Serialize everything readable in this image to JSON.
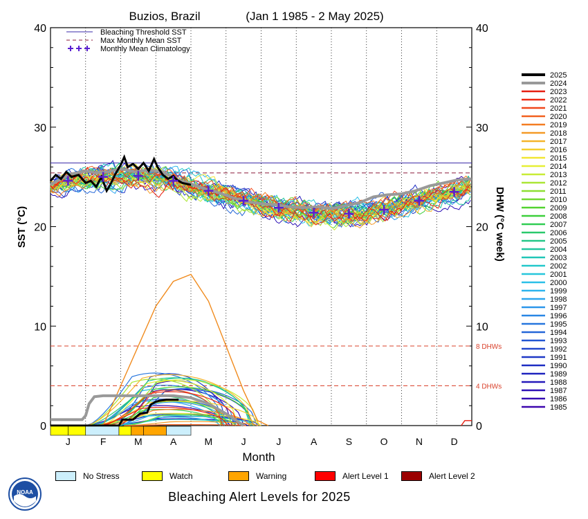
{
  "chart_data": {
    "type": "line",
    "title": "Buzios, Brazil",
    "date_range": "(Jan 1 1985 - 2 May 2025)",
    "ylabel_left": "SST (°C)",
    "ylabel_right": "DHW (°C week)",
    "xlabel": "Month",
    "ylim": [
      0,
      40
    ],
    "yticks": [
      0,
      10,
      20,
      30,
      40
    ],
    "months": [
      "J",
      "F",
      "M",
      "A",
      "M",
      "J",
      "J",
      "A",
      "S",
      "O",
      "N",
      "D"
    ],
    "grid": "vertical dotted at month boundaries",
    "reference_lines": [
      {
        "name": "Bleaching Threshold SST",
        "value": 26.4,
        "color": "#3a2aa8",
        "style": "solid"
      },
      {
        "name": "Max Monthly Mean SST",
        "value": 25.4,
        "color": "#8b1a3a",
        "style": "dashed"
      }
    ],
    "dhw_lines": [
      {
        "label": "8 DHWs",
        "value": 8,
        "color": "#d9402a"
      },
      {
        "label": "4 DHWs",
        "value": 4,
        "color": "#d9402a"
      }
    ],
    "climatology": {
      "name": "Monthly Mean Climatology",
      "color": "#5a1fd1",
      "values": [
        24.6,
        25.0,
        25.1,
        24.6,
        23.6,
        22.6,
        21.9,
        21.4,
        21.3,
        21.7,
        22.6,
        23.5
      ]
    },
    "legend_position": "top-left inside plot",
    "years": [
      "2025",
      "2024",
      "2023",
      "2022",
      "2021",
      "2020",
      "2019",
      "2018",
      "2017",
      "2016",
      "2015",
      "2014",
      "2013",
      "2012",
      "2011",
      "2010",
      "2009",
      "2008",
      "2007",
      "2006",
      "2005",
      "2004",
      "2003",
      "2002",
      "2001",
      "2000",
      "1999",
      "1998",
      "1997",
      "1996",
      "1995",
      "1994",
      "1993",
      "1992",
      "1991",
      "1990",
      "1989",
      "1988",
      "1987",
      "1986",
      "1985"
    ],
    "year_colors": [
      "#000000",
      "#999999",
      "#e61e10",
      "#ee2a14",
      "#f0461a",
      "#f2601e",
      "#f47d22",
      "#f49a26",
      "#f4b42a",
      "#f4cf2e",
      "#f2e632",
      "#e6ef34",
      "#c8ec34",
      "#aae634",
      "#8edf32",
      "#70d830",
      "#52d32e",
      "#3ccf3a",
      "#30cc52",
      "#2ac96c",
      "#24c787",
      "#22c69f",
      "#20c6b7",
      "#22c8cb",
      "#26c6dc",
      "#2ac0e8",
      "#2cb4ee",
      "#2ca6ee",
      "#2a96ea",
      "#2886e4",
      "#2676de",
      "#2466d8",
      "#2256d2",
      "#2046cc",
      "#1e38c6",
      "#1c2cc2",
      "#1e22be",
      "#2418ba",
      "#2c10b6",
      "#340ab2",
      "#3c06ae"
    ],
    "sst_2025": [
      {
        "x": 0.0,
        "y": 24.6
      },
      {
        "x": 0.15,
        "y": 25.2
      },
      {
        "x": 0.3,
        "y": 24.8
      },
      {
        "x": 0.45,
        "y": 25.5
      },
      {
        "x": 0.6,
        "y": 25.0
      },
      {
        "x": 0.8,
        "y": 25.2
      },
      {
        "x": 1.0,
        "y": 24.4
      },
      {
        "x": 1.15,
        "y": 24.6
      },
      {
        "x": 1.3,
        "y": 24.0
      },
      {
        "x": 1.45,
        "y": 25.0
      },
      {
        "x": 1.6,
        "y": 23.6
      },
      {
        "x": 1.7,
        "y": 24.2
      },
      {
        "x": 1.85,
        "y": 25.3
      },
      {
        "x": 2.0,
        "y": 26.2
      },
      {
        "x": 2.1,
        "y": 27.0
      },
      {
        "x": 2.2,
        "y": 26.0
      },
      {
        "x": 2.35,
        "y": 26.3
      },
      {
        "x": 2.5,
        "y": 25.8
      },
      {
        "x": 2.65,
        "y": 26.4
      },
      {
        "x": 2.8,
        "y": 25.6
      },
      {
        "x": 2.95,
        "y": 26.8
      },
      {
        "x": 3.05,
        "y": 26.0
      },
      {
        "x": 3.2,
        "y": 25.2
      },
      {
        "x": 3.35,
        "y": 24.8
      },
      {
        "x": 3.5,
        "y": 25.1
      },
      {
        "x": 3.6,
        "y": 24.7
      },
      {
        "x": 3.75,
        "y": 24.4
      },
      {
        "x": 4.0,
        "y": 24.2
      }
    ],
    "sst_2024": [
      {
        "x": 0.0,
        "y": 24.2
      },
      {
        "x": 0.3,
        "y": 24.8
      },
      {
        "x": 0.6,
        "y": 25.3
      },
      {
        "x": 1.0,
        "y": 25.6
      },
      {
        "x": 1.3,
        "y": 25.4
      },
      {
        "x": 1.6,
        "y": 25.5
      },
      {
        "x": 2.0,
        "y": 25.8
      },
      {
        "x": 2.4,
        "y": 25.5
      },
      {
        "x": 2.8,
        "y": 25.7
      },
      {
        "x": 3.2,
        "y": 25.5
      },
      {
        "x": 3.6,
        "y": 24.7
      },
      {
        "x": 4.0,
        "y": 24.3
      },
      {
        "x": 4.4,
        "y": 23.8
      },
      {
        "x": 4.8,
        "y": 23.4
      },
      {
        "x": 5.2,
        "y": 22.9
      },
      {
        "x": 5.6,
        "y": 22.5
      },
      {
        "x": 6.0,
        "y": 22.3
      },
      {
        "x": 6.4,
        "y": 22.2
      },
      {
        "x": 6.8,
        "y": 22.0
      },
      {
        "x": 7.2,
        "y": 21.9
      },
      {
        "x": 7.6,
        "y": 22.0
      },
      {
        "x": 8.0,
        "y": 21.8
      },
      {
        "x": 8.4,
        "y": 22.1
      },
      {
        "x": 8.8,
        "y": 22.4
      },
      {
        "x": 9.2,
        "y": 23.0
      },
      {
        "x": 9.6,
        "y": 23.2
      },
      {
        "x": 10.0,
        "y": 23.3
      },
      {
        "x": 10.4,
        "y": 23.6
      },
      {
        "x": 10.8,
        "y": 24.1
      },
      {
        "x": 11.2,
        "y": 24.4
      },
      {
        "x": 11.6,
        "y": 24.7
      },
      {
        "x": 12.0,
        "y": 24.8
      }
    ],
    "dhw_2025": [
      {
        "x": 0.0,
        "y": 0.0
      },
      {
        "x": 1.5,
        "y": 0.0
      },
      {
        "x": 1.95,
        "y": 0.0
      },
      {
        "x": 2.05,
        "y": 0.6
      },
      {
        "x": 2.35,
        "y": 0.6
      },
      {
        "x": 2.45,
        "y": 0.9
      },
      {
        "x": 2.55,
        "y": 1.2
      },
      {
        "x": 2.75,
        "y": 1.3
      },
      {
        "x": 2.85,
        "y": 2.1
      },
      {
        "x": 3.0,
        "y": 2.4
      },
      {
        "x": 3.1,
        "y": 2.5
      },
      {
        "x": 3.3,
        "y": 2.6
      },
      {
        "x": 3.5,
        "y": 2.6
      },
      {
        "x": 3.65,
        "y": 2.6
      },
      {
        "x": 3.65,
        "y": 2.6
      }
    ],
    "dhw_2024": [
      {
        "x": 0.0,
        "y": 0.6
      },
      {
        "x": 0.9,
        "y": 0.6
      },
      {
        "x": 1.0,
        "y": 1.0
      },
      {
        "x": 1.1,
        "y": 2.2
      },
      {
        "x": 1.25,
        "y": 2.9
      },
      {
        "x": 1.5,
        "y": 3.0
      },
      {
        "x": 2.5,
        "y": 3.0
      },
      {
        "x": 3.0,
        "y": 3.0
      },
      {
        "x": 3.5,
        "y": 3.0
      },
      {
        "x": 4.0,
        "y": 2.8
      },
      {
        "x": 4.5,
        "y": 2.2
      },
      {
        "x": 5.0,
        "y": 1.2
      },
      {
        "x": 5.3,
        "y": 0.5
      },
      {
        "x": 5.5,
        "y": 0.0
      }
    ],
    "dhw_max_orange": [
      {
        "x": 1.5,
        "y": 0.0
      },
      {
        "x": 2.0,
        "y": 4.0
      },
      {
        "x": 2.5,
        "y": 8.0
      },
      {
        "x": 3.0,
        "y": 12.0
      },
      {
        "x": 3.5,
        "y": 14.5
      },
      {
        "x": 4.0,
        "y": 15.2
      },
      {
        "x": 4.5,
        "y": 12.5
      },
      {
        "x": 5.0,
        "y": 8.0
      },
      {
        "x": 5.5,
        "y": 3.5
      },
      {
        "x": 5.9,
        "y": 0.5
      },
      {
        "x": 6.2,
        "y": 0.0
      }
    ],
    "alert_bar_2025": [
      {
        "month": "J",
        "level": "Watch"
      },
      {
        "month": "F",
        "level": "No Stress"
      },
      {
        "month": "M",
        "level": "Warning"
      },
      {
        "month": "A",
        "level": "No Stress"
      }
    ]
  },
  "alert_legend": [
    {
      "label": "No Stress",
      "color": "#cceffc"
    },
    {
      "label": "Watch",
      "color": "#ffff00"
    },
    {
      "label": "Warning",
      "color": "#ffa500"
    },
    {
      "label": "Alert Level 1",
      "color": "#ff0000"
    },
    {
      "label": "Alert Level 2",
      "color": "#9b0000"
    }
  ],
  "footer_title": "Bleaching Alert Levels for 2025",
  "logo_text": "NOAA"
}
